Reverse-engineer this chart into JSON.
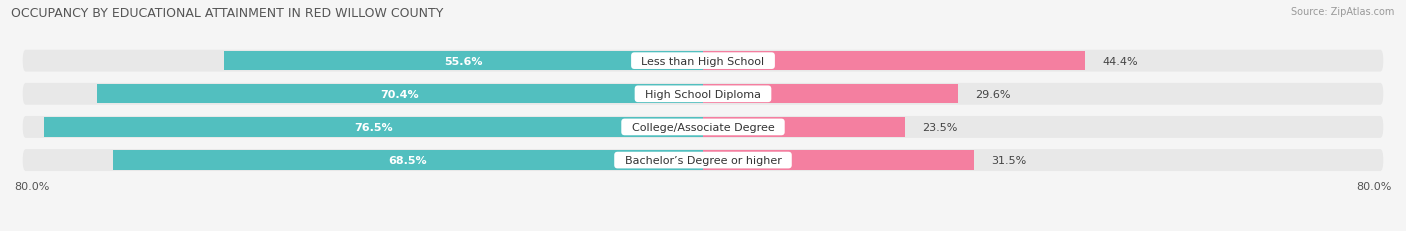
{
  "title": "OCCUPANCY BY EDUCATIONAL ATTAINMENT IN RED WILLOW COUNTY",
  "source": "Source: ZipAtlas.com",
  "categories": [
    "Less than High School",
    "High School Diploma",
    "College/Associate Degree",
    "Bachelor’s Degree or higher"
  ],
  "owner_values": [
    55.6,
    70.4,
    76.5,
    68.5
  ],
  "renter_values": [
    44.4,
    29.6,
    23.5,
    31.5
  ],
  "owner_color": "#52BFBF",
  "renter_color": "#F47FA0",
  "bar_height": 0.58,
  "row_bg_color": "#e8e8e8",
  "bg_color": "#f5f5f5",
  "title_fontsize": 9,
  "label_fontsize": 8,
  "value_fontsize": 8,
  "legend_fontsize": 8,
  "source_fontsize": 7
}
